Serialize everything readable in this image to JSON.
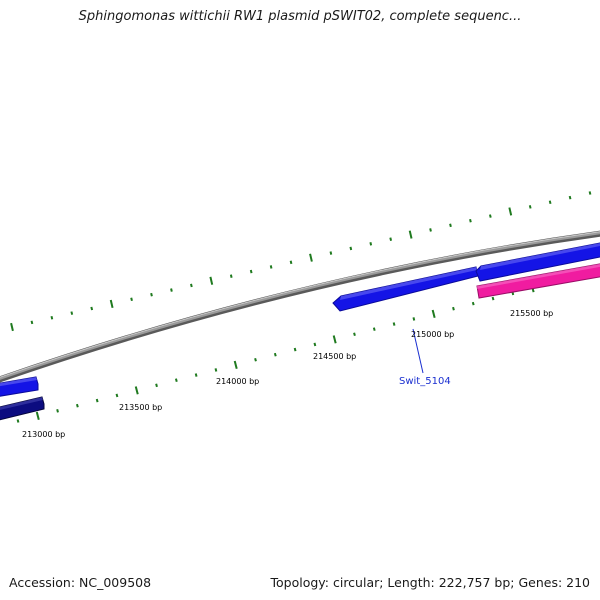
{
  "header": {
    "title": "Sphingomonas wittichii RW1 plasmid pSWIT02, complete sequenc..."
  },
  "footer": {
    "accession": "Accession: NC_009508",
    "summary": "Topology: circular; Length: 222,757 bp; Genes: 210"
  },
  "colors": {
    "backbone": "#8a8a8a",
    "tick": "#1f7a1f",
    "gene_forward": "#1414e6",
    "gene_dark": "#0c0c80",
    "gene_rna": "#f01ca0",
    "label": "#1a2fd0"
  },
  "ruler": {
    "labels": [
      "213000 bp",
      "213500 bp",
      "214000 bp",
      "214500 bp",
      "215000 bp",
      "215500 bp"
    ]
  },
  "genes": [
    {
      "strand": "forward",
      "color": "gene_forward"
    },
    {
      "strand": "reverse",
      "color": "gene_dark"
    },
    {
      "strand": "forward",
      "color": "gene_forward",
      "label": "Swit_5104"
    },
    {
      "strand": "forward",
      "color": "gene_forward"
    },
    {
      "strand": "forward",
      "color": "gene_rna"
    }
  ]
}
